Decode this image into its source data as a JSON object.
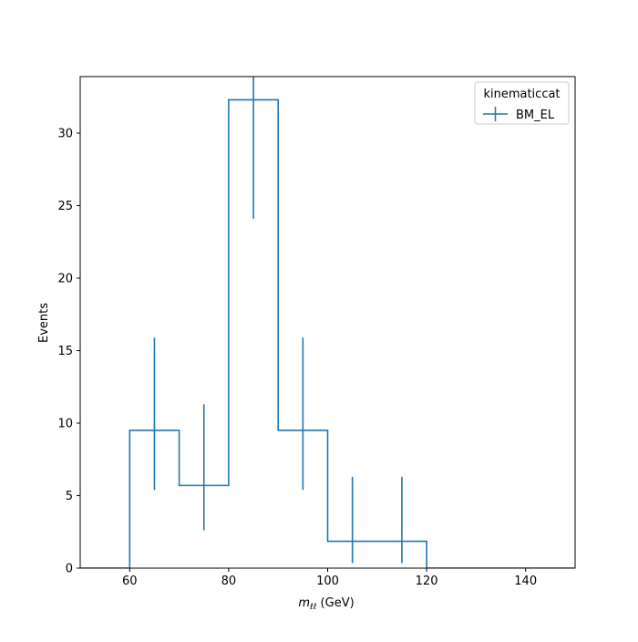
{
  "chart_data": {
    "type": "histogram",
    "xlabel_main": "m",
    "xlabel_sub": "ℓℓ",
    "xlabel_unit": " (GeV)",
    "ylabel": "Events",
    "xlim": [
      50,
      150
    ],
    "ylim": [
      0,
      33.9
    ],
    "xticks": [
      60,
      80,
      100,
      120,
      140
    ],
    "yticks": [
      0,
      5,
      10,
      15,
      20,
      25,
      30
    ],
    "grid": false,
    "legend": {
      "title": "kinematiccat",
      "placement": "top-right",
      "entries": [
        {
          "label": "BM_EL",
          "color": "#1f77b4"
        }
      ]
    },
    "series": [
      {
        "name": "BM_EL",
        "color": "#1f77b4",
        "bin_edges": [
          50,
          60,
          70,
          80,
          90,
          100,
          110,
          120,
          130,
          140,
          150
        ],
        "values": [
          0,
          9.5,
          5.7,
          32.3,
          9.5,
          1.85,
          1.85,
          0,
          0,
          0
        ],
        "errors": [
          null,
          [
            5.4,
            15.9
          ],
          [
            2.6,
            11.3
          ],
          [
            24.1,
            40.5
          ],
          [
            5.4,
            15.9
          ],
          [
            0.35,
            6.3
          ],
          [
            0.35,
            6.3
          ],
          null,
          null,
          null
        ]
      }
    ]
  }
}
